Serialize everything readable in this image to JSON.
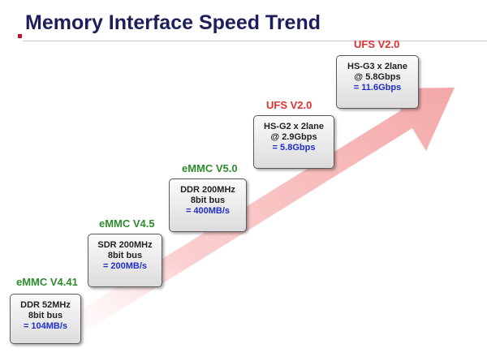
{
  "title": "Memory Interface Speed Trend",
  "colors": {
    "title": "#1c1f5c",
    "accent": "#c8102e",
    "emmc_label": "#2e8b2e",
    "ufs_label": "#e03030",
    "speed_value": "#1f2fc9",
    "arrow": "#f8c0c0"
  },
  "stages": [
    {
      "label": "eMMC V4.41",
      "lines": [
        "DDR 52MHz",
        "8bit bus"
      ],
      "speed": "= 104MB/s"
    },
    {
      "label": "eMMC V4.5",
      "lines": [
        "SDR 200MHz",
        "8bit bus"
      ],
      "speed": "= 200MB/s"
    },
    {
      "label": "eMMC V5.0",
      "lines": [
        "DDR 200MHz",
        "8bit bus"
      ],
      "speed": "= 400MB/s"
    },
    {
      "label": "UFS V2.0",
      "lines": [
        "HS-G2 x 2lane",
        "@ 2.9Gbps"
      ],
      "speed": "= 5.8Gbps"
    },
    {
      "label": "UFS V2.0",
      "lines": [
        "HS-G3 x 2lane",
        "@ 5.8Gbps"
      ],
      "speed": "= 11.6Gbps"
    }
  ]
}
